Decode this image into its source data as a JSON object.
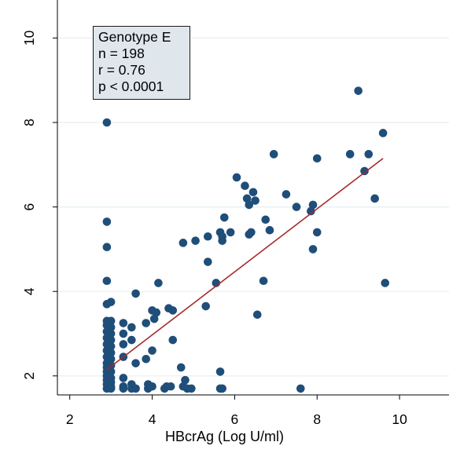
{
  "chart_data": {
    "type": "scatter",
    "title": "",
    "xlabel": "HBcrAg (Log U/ml)",
    "ylabel": "",
    "xlim": [
      1.7,
      11.2
    ],
    "ylim": [
      1.55,
      10.9
    ],
    "x_ticks": [
      2,
      4,
      6,
      8,
      10
    ],
    "y_ticks": [
      2,
      4,
      6,
      8,
      10
    ],
    "grid": "horizontal",
    "annotation": [
      "Genotype E",
      "n = 198",
      "r = 0.76",
      "p < 0.0001"
    ],
    "points": [
      [
        2.9,
        8.0
      ],
      [
        2.9,
        5.65
      ],
      [
        2.9,
        5.05
      ],
      [
        2.9,
        4.25
      ],
      [
        2.9,
        3.7
      ],
      [
        2.9,
        3.3
      ],
      [
        2.9,
        3.2
      ],
      [
        2.9,
        3.05
      ],
      [
        2.9,
        2.9
      ],
      [
        2.9,
        2.75
      ],
      [
        2.9,
        2.6
      ],
      [
        2.9,
        2.45
      ],
      [
        2.9,
        2.3
      ],
      [
        2.9,
        2.2
      ],
      [
        2.9,
        2.1
      ],
      [
        2.9,
        2.0
      ],
      [
        2.9,
        1.9
      ],
      [
        2.9,
        1.8
      ],
      [
        2.9,
        1.7
      ],
      [
        3.0,
        3.75
      ],
      [
        3.0,
        3.3
      ],
      [
        3.0,
        3.15
      ],
      [
        3.0,
        3.0
      ],
      [
        3.0,
        2.85
      ],
      [
        3.0,
        2.7
      ],
      [
        3.0,
        2.55
      ],
      [
        3.0,
        2.4
      ],
      [
        3.0,
        2.25
      ],
      [
        3.0,
        2.1
      ],
      [
        3.0,
        1.95
      ],
      [
        3.0,
        1.85
      ],
      [
        3.0,
        1.75
      ],
      [
        3.0,
        1.7
      ],
      [
        3.3,
        3.25
      ],
      [
        3.3,
        3.0
      ],
      [
        3.3,
        2.75
      ],
      [
        3.3,
        2.45
      ],
      [
        3.3,
        1.95
      ],
      [
        3.3,
        1.75
      ],
      [
        3.3,
        1.7
      ],
      [
        3.5,
        3.15
      ],
      [
        3.5,
        2.85
      ],
      [
        3.5,
        1.8
      ],
      [
        3.5,
        1.7
      ],
      [
        3.6,
        3.95
      ],
      [
        3.6,
        2.3
      ],
      [
        3.6,
        1.7
      ],
      [
        3.85,
        2.4
      ],
      [
        3.85,
        3.25
      ],
      [
        3.9,
        1.8
      ],
      [
        3.9,
        1.7
      ],
      [
        4.0,
        3.55
      ],
      [
        4.0,
        2.6
      ],
      [
        4.0,
        1.75
      ],
      [
        4.05,
        3.35
      ],
      [
        4.1,
        3.5
      ],
      [
        4.15,
        4.2
      ],
      [
        4.3,
        1.7
      ],
      [
        4.35,
        1.75
      ],
      [
        4.4,
        3.6
      ],
      [
        4.45,
        1.75
      ],
      [
        4.5,
        3.55
      ],
      [
        4.5,
        2.85
      ],
      [
        4.7,
        2.2
      ],
      [
        4.75,
        5.15
      ],
      [
        4.75,
        1.75
      ],
      [
        4.8,
        1.9
      ],
      [
        4.85,
        1.7
      ],
      [
        4.95,
        1.7
      ],
      [
        5.05,
        5.2
      ],
      [
        5.3,
        3.65
      ],
      [
        5.35,
        4.7
      ],
      [
        5.35,
        5.3
      ],
      [
        5.55,
        4.2
      ],
      [
        5.65,
        5.4
      ],
      [
        5.7,
        5.2
      ],
      [
        5.7,
        5.3
      ],
      [
        5.75,
        5.75
      ],
      [
        5.65,
        2.1
      ],
      [
        5.65,
        1.7
      ],
      [
        5.7,
        1.7
      ],
      [
        5.9,
        5.4
      ],
      [
        6.05,
        6.7
      ],
      [
        6.25,
        6.5
      ],
      [
        6.3,
        6.2
      ],
      [
        6.35,
        6.05
      ],
      [
        6.35,
        5.35
      ],
      [
        6.4,
        5.4
      ],
      [
        6.45,
        6.35
      ],
      [
        6.5,
        6.15
      ],
      [
        6.55,
        3.45
      ],
      [
        6.7,
        4.25
      ],
      [
        6.75,
        5.7
      ],
      [
        6.85,
        5.45
      ],
      [
        6.95,
        7.25
      ],
      [
        7.25,
        6.3
      ],
      [
        7.5,
        6.0
      ],
      [
        7.6,
        1.7
      ],
      [
        7.85,
        5.9
      ],
      [
        7.9,
        6.05
      ],
      [
        7.9,
        5.0
      ],
      [
        8.0,
        5.4
      ],
      [
        8.0,
        7.15
      ],
      [
        8.8,
        7.25
      ],
      [
        9.0,
        8.75
      ],
      [
        9.15,
        6.85
      ],
      [
        9.25,
        7.25
      ],
      [
        9.4,
        6.2
      ],
      [
        9.6,
        7.75
      ],
      [
        9.65,
        4.2
      ]
    ],
    "fit_line": {
      "x": [
        2.9,
        9.6
      ],
      "y": [
        2.15,
        7.15
      ]
    },
    "colors": {
      "points": "#1f4e79",
      "fit_line": "#a52a2a",
      "grid": "#e6eef2",
      "annotation_bg": "#dfe7ec"
    }
  }
}
